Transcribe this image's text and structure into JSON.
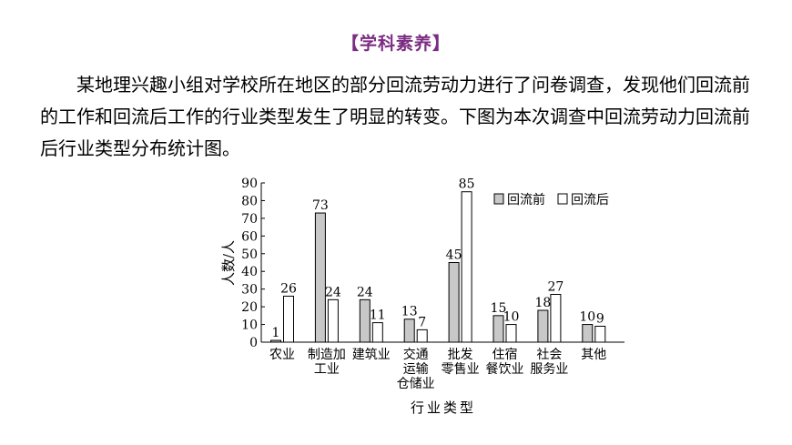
{
  "heading": "【学科素养】",
  "intro": "某地理兴趣小组对学校所在地区的部分回流劳动力进行了问卷调查，发现他们回流前的工作和回流后工作的行业类型发生了明显的转变。下图为本次调查中回流劳动力回流前后行业类型分布统计图。",
  "colors": {
    "before": "#c8c8c8",
    "after": "#ffffff",
    "heading": "#7b2c83"
  },
  "chart_data": {
    "type": "bar",
    "title": "",
    "xlabel": "行业类型",
    "ylabel": "人数/人",
    "ylim": [
      0,
      90
    ],
    "yticks": [
      0,
      10,
      20,
      30,
      40,
      50,
      60,
      70,
      80,
      90
    ],
    "legend_position": "top-right",
    "categories": [
      [
        "农业"
      ],
      [
        "制造加",
        "工业"
      ],
      [
        "建筑业"
      ],
      [
        "交通",
        "运输",
        "仓储业"
      ],
      [
        "批发",
        "零售业"
      ],
      [
        "住宿",
        "餐饮业"
      ],
      [
        "社会",
        "服务业"
      ],
      [
        "其他"
      ]
    ],
    "series": [
      {
        "name": "回流前",
        "values": [
          1,
          73,
          24,
          13,
          45,
          15,
          18,
          10
        ]
      },
      {
        "name": "回流后",
        "values": [
          26,
          24,
          11,
          7,
          85,
          10,
          27,
          9
        ]
      }
    ]
  }
}
